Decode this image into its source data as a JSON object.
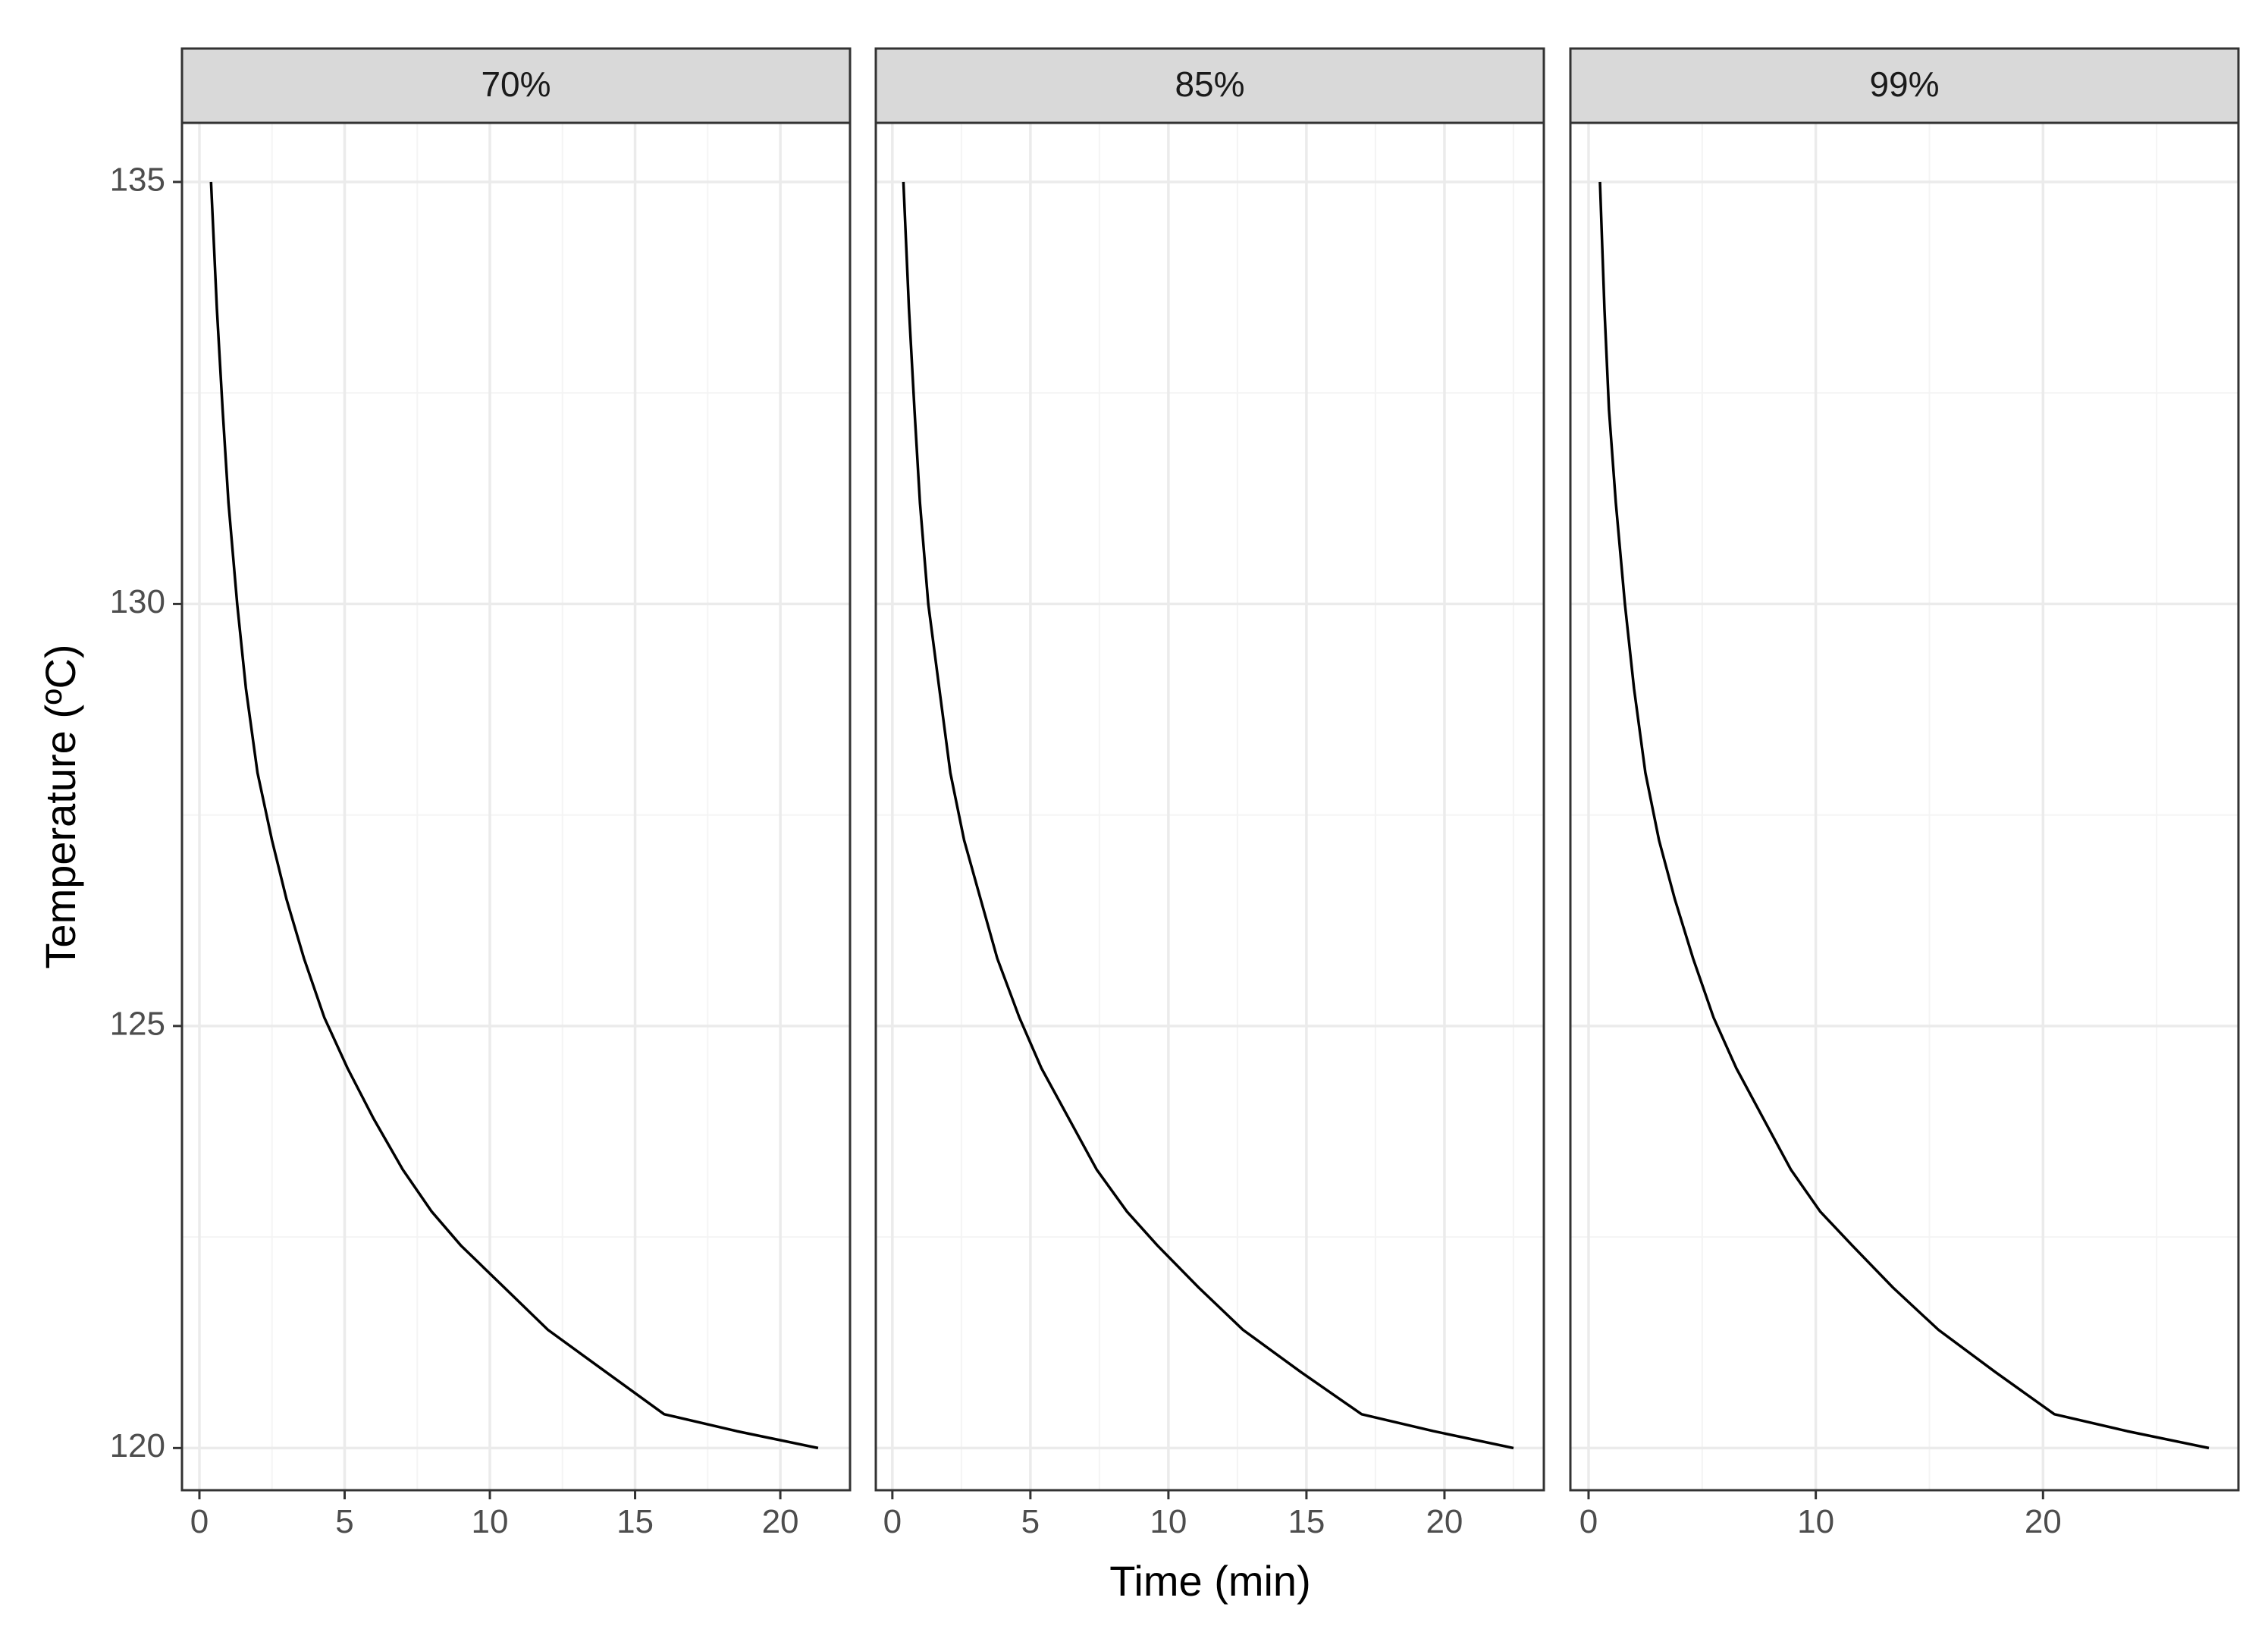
{
  "chart_data": {
    "type": "line",
    "layout": "facet",
    "xlabel": "Time (min)",
    "ylabel": "Temperature (ºC)",
    "ylim": [
      119.5,
      135.7
    ],
    "yticks": [
      120,
      125,
      130,
      135
    ],
    "grid": true,
    "legend": "none",
    "colors": {
      "line": "#000000",
      "strip_fill": "#d9d9d9",
      "grid_major": "#ebebeb",
      "grid_minor": "#f4f4f4",
      "border": "#333333",
      "text": "#4d4d4d"
    },
    "panels": [
      {
        "label": "70%",
        "xlim": [
          -0.6,
          22.4
        ],
        "xticks": [
          0,
          5,
          10,
          15,
          20
        ],
        "x": [
          0.4,
          0.6,
          0.8,
          1.0,
          1.3,
          1.6,
          2.0,
          2.5,
          3.0,
          3.6,
          4.3,
          5.1,
          6.0,
          7.0,
          8.0,
          9.0,
          10.5,
          12.0,
          14.0,
          16.0,
          18.5,
          21.3
        ],
        "y": [
          135.0,
          133.5,
          132.3,
          131.2,
          130.0,
          129.0,
          128.0,
          127.2,
          126.5,
          125.8,
          125.1,
          124.5,
          123.9,
          123.3,
          122.8,
          122.4,
          121.9,
          121.4,
          120.9,
          120.4,
          120.2,
          120.0
        ]
      },
      {
        "label": "85%",
        "xlim": [
          -0.6,
          23.6
        ],
        "xticks": [
          0,
          5,
          10,
          15,
          20
        ],
        "x": [
          0.4,
          0.6,
          0.8,
          1.0,
          1.3,
          1.7,
          2.1,
          2.6,
          3.2,
          3.8,
          4.6,
          5.4,
          6.4,
          7.4,
          8.5,
          9.6,
          11.1,
          12.7,
          14.8,
          17.0,
          19.6,
          22.5
        ],
        "y": [
          135.0,
          133.5,
          132.3,
          131.2,
          130.0,
          129.0,
          128.0,
          127.2,
          126.5,
          125.8,
          125.1,
          124.5,
          123.9,
          123.3,
          122.8,
          122.4,
          121.9,
          121.4,
          120.9,
          120.4,
          120.2,
          120.0
        ]
      },
      {
        "label": "99%",
        "xlim": [
          -0.8,
          28.6
        ],
        "xticks": [
          0,
          10,
          20
        ],
        "x": [
          0.5,
          0.7,
          0.9,
          1.2,
          1.6,
          2.0,
          2.5,
          3.1,
          3.8,
          4.6,
          5.5,
          6.5,
          7.7,
          8.9,
          10.2,
          11.6,
          13.4,
          15.4,
          17.9,
          20.5,
          23.7,
          27.3
        ],
        "y": [
          135.0,
          133.5,
          132.3,
          131.2,
          130.0,
          129.0,
          128.0,
          127.2,
          126.5,
          125.8,
          125.1,
          124.5,
          123.9,
          123.3,
          122.8,
          122.4,
          121.9,
          121.4,
          120.9,
          120.4,
          120.2,
          120.0
        ]
      }
    ]
  }
}
